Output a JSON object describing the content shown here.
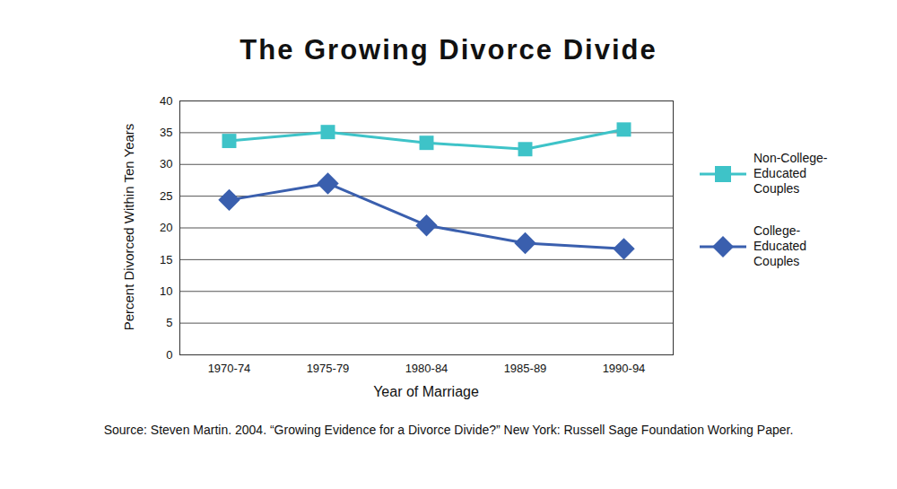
{
  "chart_data": {
    "type": "line",
    "title": "The Growing Divorce Divide",
    "x_label": "Year of Marriage",
    "y_label": "Percent Divorced Within Ten Years",
    "caption": "Source: Steven Martin. 2004. “Growing Evidence for a Divorce Divide?” New York: Russell Sage Foundation Working Paper.",
    "categories": [
      "1970-74",
      "1975-79",
      "1980-84",
      "1985-89",
      "1990-94"
    ],
    "series": [
      {
        "name": "Non-College-Educated Couples",
        "color": "#3ec3c8",
        "marker": "square",
        "values": [
          33.7,
          35.1,
          33.4,
          32.4,
          35.5
        ]
      },
      {
        "name": "College-Educated Couples",
        "color": "#3a5fae",
        "marker": "diamond",
        "values": [
          24.4,
          27.0,
          20.4,
          17.6,
          16.7
        ]
      }
    ],
    "ylim": [
      0,
      40
    ],
    "yticks": [
      0,
      5,
      10,
      15,
      20,
      25,
      30,
      35,
      40
    ],
    "grid": true,
    "legend": "right"
  }
}
